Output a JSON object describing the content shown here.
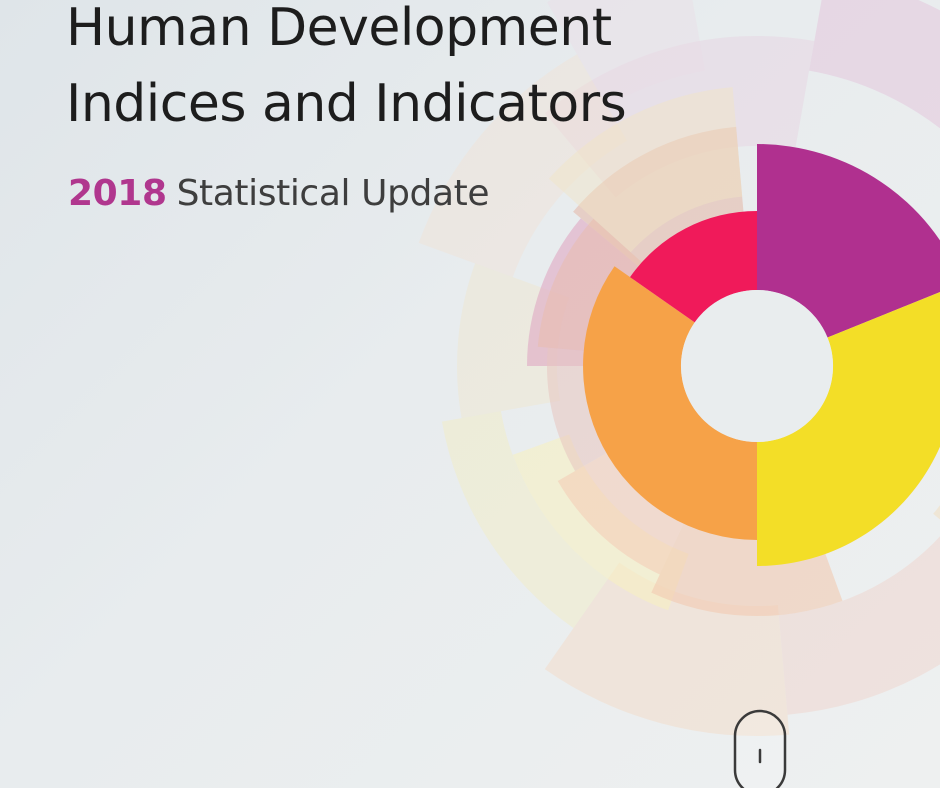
{
  "cover": {
    "title_line_1": "Human Development",
    "title_line_2": "Indices and Indicators",
    "subtitle_year": "2018",
    "subtitle_text": "Statistical Update"
  },
  "colors": {
    "year_accent": "#b0378e",
    "title_text": "#1d1d1d",
    "subtitle_text": "#3e3e3e",
    "segment_purple": "#b0308f",
    "segment_yellow": "#f3de27",
    "segment_orange": "#f6a248",
    "segment_red": "#f01a5a",
    "center_disc": "#e9edee"
  },
  "icons": {
    "scroll_indicator": "scroll-mouse-icon"
  }
}
